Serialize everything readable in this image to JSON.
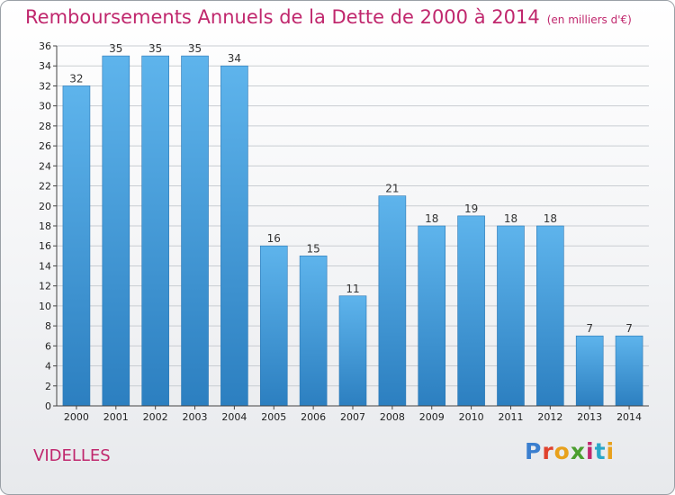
{
  "header": {
    "title": "Remboursements Annuels de la Dette de 2000 à 2014",
    "unit": "(en milliers d'€)"
  },
  "footer": {
    "commune": "VIDELLES",
    "logo_text": "Proxiti",
    "logo_colors": [
      "#3b7fcf",
      "#e0422d",
      "#e8a11c",
      "#4b9e2f",
      "#c0276d",
      "#2aa7c9",
      "#e8a11c"
    ]
  },
  "colors": {
    "bar_top": "#5eb4ec",
    "bar_bottom": "#2c7fc0",
    "title": "#c0276d",
    "grid": "#c9cdd2"
  },
  "chart_data": {
    "type": "bar",
    "title": "Remboursements Annuels de la Dette de 2000 à 2014",
    "categories": [
      "2000",
      "2001",
      "2002",
      "2003",
      "2004",
      "2005",
      "2006",
      "2007",
      "2008",
      "2009",
      "2010",
      "2011",
      "2012",
      "2013",
      "2014"
    ],
    "values": [
      32,
      35,
      35,
      35,
      34,
      16,
      15,
      11,
      21,
      18,
      19,
      18,
      18,
      7,
      7
    ],
    "ylim": [
      0,
      36
    ],
    "yticks": [
      0,
      2,
      4,
      6,
      8,
      10,
      12,
      14,
      16,
      18,
      20,
      22,
      24,
      26,
      28,
      30,
      32,
      34,
      36
    ],
    "grid": true,
    "data_labels": true
  }
}
